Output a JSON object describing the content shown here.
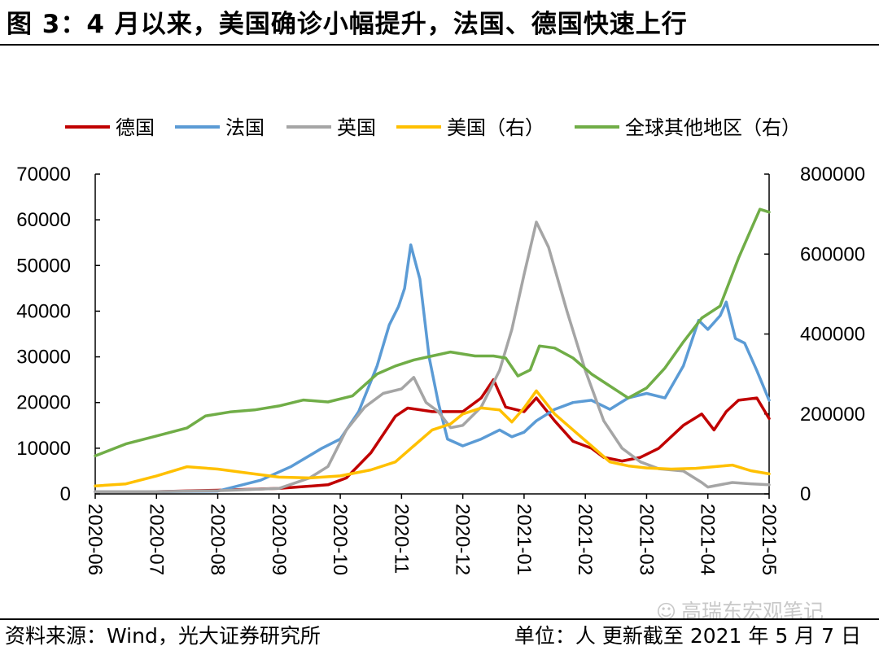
{
  "header": {
    "title": "图 3：4 月以来，美国确诊小幅提升，法国、德国快速上行"
  },
  "footer": {
    "source": "资料来源：Wind，光大证券研究所",
    "note": "单位：人 更新截至 2021 年 5 月 7 日",
    "watermark": "高瑞东宏观笔记"
  },
  "chart_data": {
    "type": "line",
    "title": "",
    "x_ticks": [
      "2020-06",
      "2020-07",
      "2020-08",
      "2020-09",
      "2020-10",
      "2020-11",
      "2020-12",
      "2021-01",
      "2021-02",
      "2021-03",
      "2021-04",
      "2021-05"
    ],
    "x_range": [
      0,
      11
    ],
    "y_left": {
      "ticks": [
        "70000",
        "60000",
        "50000",
        "40000",
        "30000",
        "20000",
        "10000",
        "0"
      ],
      "range": [
        0,
        70000
      ]
    },
    "y_right": {
      "ticks": [
        "800000",
        "600000",
        "400000",
        "200000",
        "0"
      ],
      "range": [
        0,
        800000
      ]
    },
    "legend_position": "top",
    "series": [
      {
        "name": "德国",
        "axis": "left",
        "color": "#c00000",
        "points": [
          [
            0,
            500
          ],
          [
            1,
            500
          ],
          [
            2,
            800
          ],
          [
            3,
            1200
          ],
          [
            3.8,
            2000
          ],
          [
            4.1,
            3500
          ],
          [
            4.5,
            9000
          ],
          [
            4.9,
            17000
          ],
          [
            5.1,
            18800
          ],
          [
            5.5,
            18000
          ],
          [
            6,
            18000
          ],
          [
            6.3,
            21000
          ],
          [
            6.5,
            25000
          ],
          [
            6.7,
            19000
          ],
          [
            7,
            18000
          ],
          [
            7.2,
            21000
          ],
          [
            7.5,
            16000
          ],
          [
            7.8,
            11500
          ],
          [
            8.1,
            10000
          ],
          [
            8.3,
            8000
          ],
          [
            8.6,
            7200
          ],
          [
            8.9,
            8000
          ],
          [
            9.2,
            10000
          ],
          [
            9.6,
            15000
          ],
          [
            9.9,
            17500
          ],
          [
            10.1,
            14000
          ],
          [
            10.3,
            18000
          ],
          [
            10.5,
            20500
          ],
          [
            10.8,
            21000
          ],
          [
            11,
            16500
          ]
        ]
      },
      {
        "name": "法国",
        "axis": "left",
        "color": "#5b9bd5",
        "points": [
          [
            0,
            500
          ],
          [
            1,
            500
          ],
          [
            2,
            600
          ],
          [
            2.7,
            3000
          ],
          [
            3.2,
            6000
          ],
          [
            3.7,
            10000
          ],
          [
            4,
            12000
          ],
          [
            4.3,
            18000
          ],
          [
            4.6,
            28000
          ],
          [
            4.8,
            37000
          ],
          [
            4.95,
            41000
          ],
          [
            5.05,
            45000
          ],
          [
            5.15,
            54500
          ],
          [
            5.3,
            47000
          ],
          [
            5.45,
            30000
          ],
          [
            5.6,
            20000
          ],
          [
            5.75,
            12000
          ],
          [
            6,
            10500
          ],
          [
            6.3,
            12000
          ],
          [
            6.6,
            14000
          ],
          [
            6.8,
            12500
          ],
          [
            7,
            13500
          ],
          [
            7.2,
            16000
          ],
          [
            7.5,
            18500
          ],
          [
            7.8,
            20000
          ],
          [
            8.1,
            20500
          ],
          [
            8.4,
            18500
          ],
          [
            8.7,
            21000
          ],
          [
            9,
            22000
          ],
          [
            9.3,
            21000
          ],
          [
            9.6,
            28000
          ],
          [
            9.85,
            38000
          ],
          [
            10,
            36000
          ],
          [
            10.2,
            39000
          ],
          [
            10.3,
            42000
          ],
          [
            10.45,
            34000
          ],
          [
            10.6,
            33000
          ],
          [
            10.8,
            27000
          ],
          [
            11,
            20500
          ]
        ]
      },
      {
        "name": "英国",
        "axis": "left",
        "color": "#a5a5a5",
        "points": [
          [
            0,
            500
          ],
          [
            1,
            500
          ],
          [
            2,
            700
          ],
          [
            3,
            1200
          ],
          [
            3.5,
            3500
          ],
          [
            3.8,
            6000
          ],
          [
            4.1,
            14000
          ],
          [
            4.4,
            19000
          ],
          [
            4.7,
            22000
          ],
          [
            5,
            23000
          ],
          [
            5.2,
            25500
          ],
          [
            5.4,
            20000
          ],
          [
            5.6,
            18000
          ],
          [
            5.8,
            14500
          ],
          [
            6,
            15000
          ],
          [
            6.3,
            19000
          ],
          [
            6.6,
            27000
          ],
          [
            6.8,
            36000
          ],
          [
            7,
            48000
          ],
          [
            7.2,
            59500
          ],
          [
            7.4,
            54000
          ],
          [
            7.7,
            40000
          ],
          [
            8,
            27000
          ],
          [
            8.3,
            16000
          ],
          [
            8.6,
            10000
          ],
          [
            8.9,
            7000
          ],
          [
            9.2,
            5500
          ],
          [
            9.6,
            5000
          ],
          [
            9.9,
            2500
          ],
          [
            10,
            1500
          ],
          [
            10.4,
            2500
          ],
          [
            10.7,
            2200
          ],
          [
            11,
            2000
          ]
        ]
      },
      {
        "name": "美国（右）",
        "axis": "right",
        "color": "#ffc000",
        "points": [
          [
            0,
            20000
          ],
          [
            0.5,
            25000
          ],
          [
            1,
            45000
          ],
          [
            1.5,
            68000
          ],
          [
            2,
            62000
          ],
          [
            2.5,
            52000
          ],
          [
            3,
            42000
          ],
          [
            3.5,
            40000
          ],
          [
            4,
            45000
          ],
          [
            4.5,
            60000
          ],
          [
            4.9,
            80000
          ],
          [
            5.2,
            120000
          ],
          [
            5.5,
            160000
          ],
          [
            5.8,
            175000
          ],
          [
            6,
            200000
          ],
          [
            6.3,
            215000
          ],
          [
            6.6,
            210000
          ],
          [
            6.8,
            180000
          ],
          [
            7,
            215000
          ],
          [
            7.2,
            258000
          ],
          [
            7.5,
            200000
          ],
          [
            7.8,
            160000
          ],
          [
            8.1,
            120000
          ],
          [
            8.4,
            80000
          ],
          [
            8.7,
            70000
          ],
          [
            9,
            65000
          ],
          [
            9.4,
            62000
          ],
          [
            9.8,
            64000
          ],
          [
            10.1,
            68000
          ],
          [
            10.4,
            72000
          ],
          [
            10.7,
            58000
          ],
          [
            11,
            50000
          ]
        ]
      },
      {
        "name": "全球其他地区（右）",
        "axis": "right",
        "color": "#70ad47",
        "points": [
          [
            0,
            95000
          ],
          [
            0.5,
            125000
          ],
          [
            1,
            145000
          ],
          [
            1.5,
            165000
          ],
          [
            1.8,
            195000
          ],
          [
            2.2,
            205000
          ],
          [
            2.6,
            210000
          ],
          [
            3,
            220000
          ],
          [
            3.4,
            235000
          ],
          [
            3.8,
            230000
          ],
          [
            4.2,
            245000
          ],
          [
            4.6,
            300000
          ],
          [
            4.9,
            320000
          ],
          [
            5.2,
            335000
          ],
          [
            5.5,
            345000
          ],
          [
            5.8,
            355000
          ],
          [
            6.2,
            345000
          ],
          [
            6.5,
            345000
          ],
          [
            6.7,
            340000
          ],
          [
            6.9,
            295000
          ],
          [
            7.1,
            310000
          ],
          [
            7.25,
            370000
          ],
          [
            7.5,
            365000
          ],
          [
            7.8,
            340000
          ],
          [
            8.1,
            300000
          ],
          [
            8.4,
            270000
          ],
          [
            8.7,
            240000
          ],
          [
            9,
            265000
          ],
          [
            9.3,
            315000
          ],
          [
            9.6,
            380000
          ],
          [
            9.9,
            440000
          ],
          [
            10.2,
            470000
          ],
          [
            10.5,
            590000
          ],
          [
            10.7,
            660000
          ],
          [
            10.85,
            712000
          ],
          [
            11,
            705000
          ]
        ]
      }
    ]
  }
}
